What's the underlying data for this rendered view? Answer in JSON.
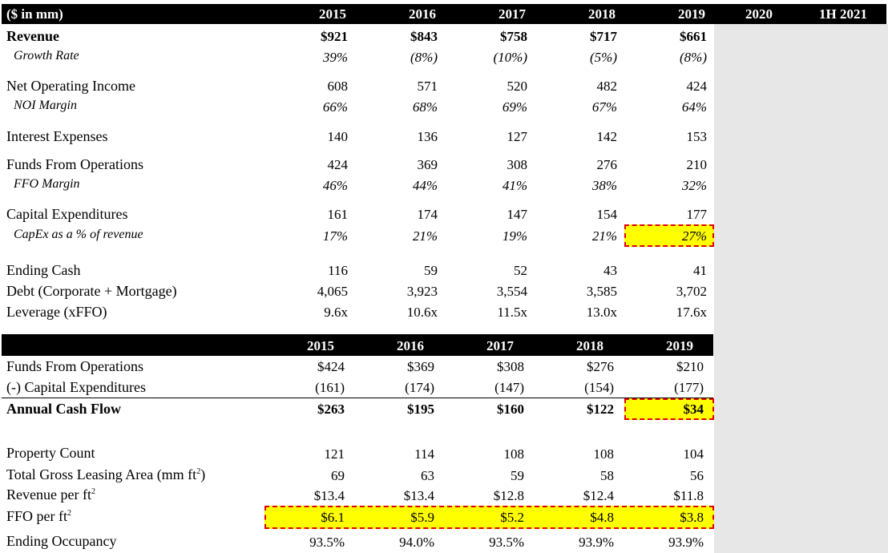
{
  "colors": {
    "header_bg": "#000000",
    "highlight": "#ffff00",
    "highlight_border": "#e00000",
    "future_col_bg": "#e7e7e7"
  },
  "top": {
    "unit_label": "($ in mm)",
    "years": [
      "2015",
      "2016",
      "2017",
      "2018",
      "2019",
      "2020",
      "1H 2021"
    ],
    "rows": [
      {
        "label": "Revenue",
        "style": "bold",
        "values": [
          "$921",
          "$843",
          "$758",
          "$717",
          "$661"
        ]
      },
      {
        "label": "Growth Rate",
        "style": "italic",
        "values": [
          "39%",
          "(8%)",
          "(10%)",
          "(5%)",
          "(8%)"
        ]
      },
      {
        "label": "Net Operating Income",
        "style": "normal",
        "values": [
          "608",
          "571",
          "520",
          "482",
          "424"
        ]
      },
      {
        "label": "NOI Margin",
        "style": "italic",
        "values": [
          "66%",
          "68%",
          "69%",
          "67%",
          "64%"
        ]
      },
      {
        "label": "Interest Expenses",
        "style": "normal",
        "values": [
          "140",
          "136",
          "127",
          "142",
          "153"
        ]
      },
      {
        "label": "Funds From Operations",
        "style": "normal",
        "values": [
          "424",
          "369",
          "308",
          "276",
          "210"
        ]
      },
      {
        "label": "FFO Margin",
        "style": "italic",
        "values": [
          "46%",
          "44%",
          "41%",
          "38%",
          "32%"
        ]
      },
      {
        "label": "Capital Expenditures",
        "style": "normal",
        "values": [
          "161",
          "174",
          "147",
          "154",
          "177"
        ]
      },
      {
        "label": "CapEx as a % of revenue",
        "style": "italic",
        "values": [
          "17%",
          "21%",
          "19%",
          "21%",
          "27%"
        ]
      },
      {
        "label": "Ending Cash",
        "style": "normal",
        "values": [
          "116",
          "59",
          "52",
          "43",
          "41"
        ]
      },
      {
        "label": "Debt (Corporate + Mortgage)",
        "style": "normal",
        "values": [
          "4,065",
          "3,923",
          "3,554",
          "3,585",
          "3,702"
        ]
      },
      {
        "label": "Leverage (xFFO)",
        "style": "normal",
        "values": [
          "9.6x",
          "10.6x",
          "11.5x",
          "13.0x",
          "17.6x"
        ]
      }
    ]
  },
  "cashflow": {
    "years": [
      "2015",
      "2016",
      "2017",
      "2018",
      "2019"
    ],
    "rows": [
      {
        "label": "Funds From Operations",
        "style": "normal",
        "values": [
          "$424",
          "$369",
          "$308",
          "$276",
          "$210"
        ]
      },
      {
        "label": "(-) Capital Expenditures",
        "style": "normal",
        "values": [
          "(161)",
          "(174)",
          "(147)",
          "(154)",
          "(177)"
        ]
      },
      {
        "label": "Annual Cash Flow",
        "style": "bold",
        "values": [
          "$263",
          "$195",
          "$160",
          "$122",
          "$34"
        ]
      }
    ]
  },
  "property": {
    "rows": [
      {
        "label": "Property Count",
        "sup": "",
        "values": [
          "121",
          "114",
          "108",
          "108",
          "104"
        ]
      },
      {
        "label": "Total Gross Leasing Area (mm ft",
        "sup": "2",
        "suffix": ")",
        "values": [
          "69",
          "63",
          "59",
          "58",
          "56"
        ]
      },
      {
        "label": "Revenue per ft",
        "sup": "2",
        "values": [
          "$13.4",
          "$13.4",
          "$12.8",
          "$12.4",
          "$11.8"
        ]
      },
      {
        "label": "FFO per ft",
        "sup": "2",
        "values": [
          "$6.1",
          "$5.9",
          "$5.2",
          "$4.8",
          "$3.8"
        ]
      },
      {
        "label": "Ending Occupancy",
        "sup": "",
        "values": [
          "93.5%",
          "94.0%",
          "93.5%",
          "93.9%",
          "93.9%"
        ]
      }
    ]
  }
}
